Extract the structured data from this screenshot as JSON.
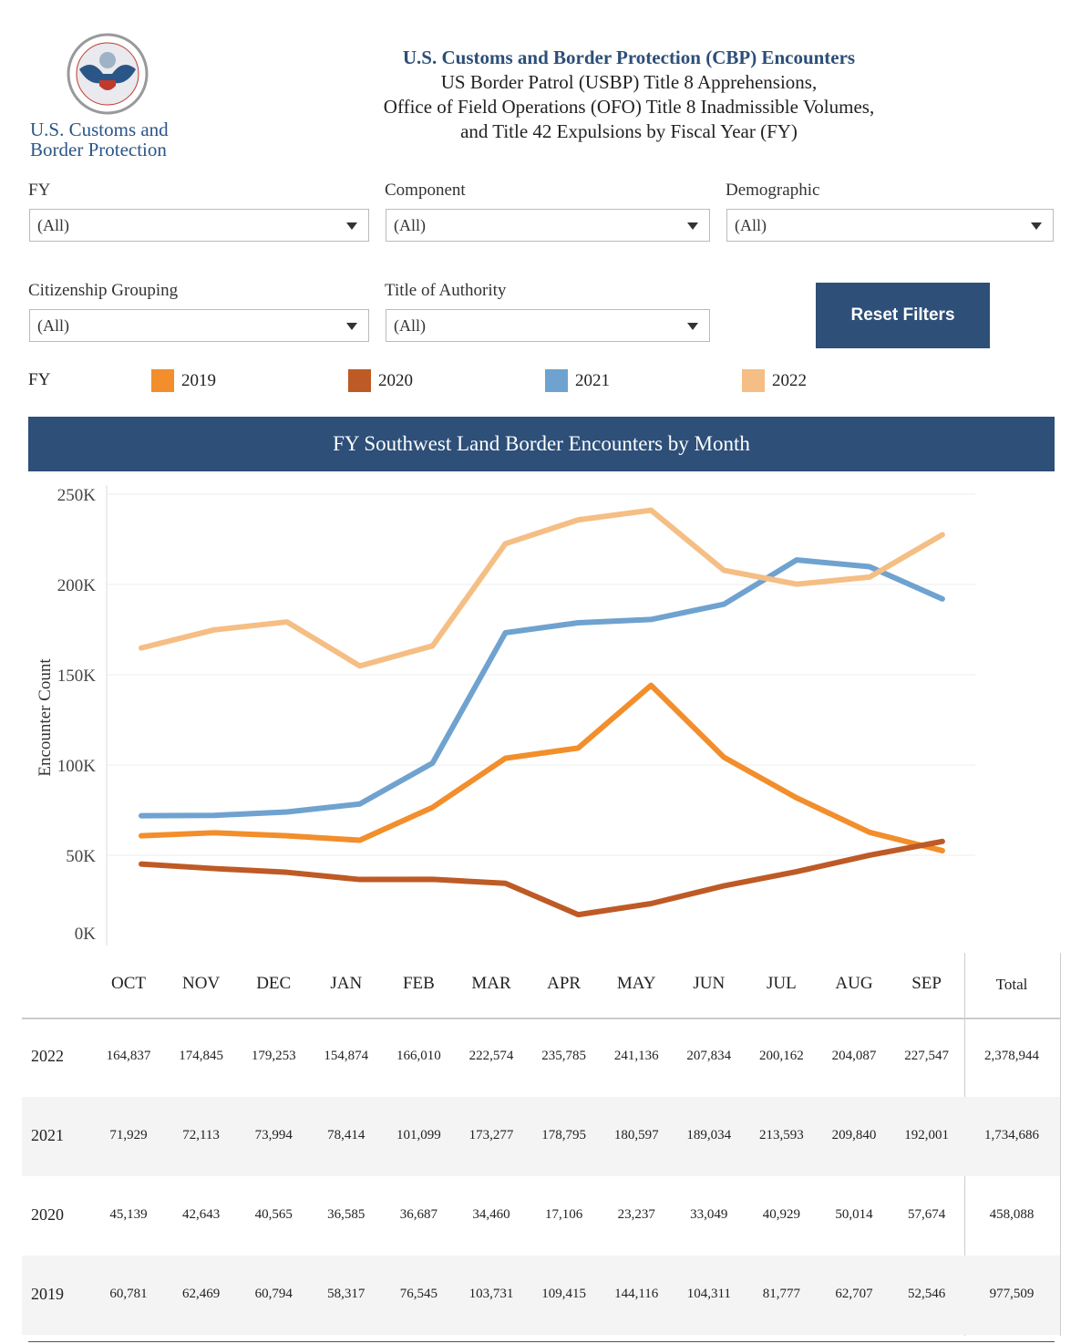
{
  "logo": {
    "text_line1": "U.S. Customs and",
    "text_line2": "Border Protection",
    "seal_text": "U.S. CUSTOMS AND BORDER PROTECTION · DEPARTMENT OF HOMELAND SECURITY"
  },
  "header": {
    "title": "U.S. Customs and Border Protection (CBP) Encounters",
    "line2": "US Border Patrol (USBP) Title 8 Apprehensions,",
    "line3": "Office of Field Operations (OFO) Title 8 Inadmissible Volumes,",
    "line4": "and Title 42 Expulsions by Fiscal Year (FY)"
  },
  "filters": {
    "fy": {
      "label": "FY",
      "value": "(All)"
    },
    "component": {
      "label": "Component",
      "value": "(All)"
    },
    "demographic": {
      "label": "Demographic",
      "value": "(All)"
    },
    "citizenship": {
      "label": "Citizenship Grouping",
      "value": "(All)"
    },
    "authority": {
      "label": "Title of Authority",
      "value": "(All)"
    },
    "reset_label": "Reset Filters"
  },
  "legend": {
    "title": "FY",
    "items": [
      {
        "label": "2019",
        "color": "#F28E2B"
      },
      {
        "label": "2020",
        "color": "#BE5A25"
      },
      {
        "label": "2021",
        "color": "#6FA2CF"
      },
      {
        "label": "2022",
        "color": "#F5BE84"
      }
    ]
  },
  "banner": "FY Southwest Land Border Encounters by Month",
  "chart_data": {
    "type": "line",
    "title": "FY Southwest Land Border Encounters by Month",
    "ylabel": "Encounter Count",
    "xlabel": "",
    "categories": [
      "OCT",
      "NOV",
      "DEC",
      "JAN",
      "FEB",
      "MAR",
      "APR",
      "MAY",
      "JUN",
      "JUL",
      "AUG",
      "SEP"
    ],
    "ylim": [
      0,
      250000
    ],
    "yticks": [
      {
        "v": 0,
        "label": "0K"
      },
      {
        "v": 50000,
        "label": "50K"
      },
      {
        "v": 100000,
        "label": "100K"
      },
      {
        "v": 150000,
        "label": "150K"
      },
      {
        "v": 200000,
        "label": "200K"
      },
      {
        "v": 250000,
        "label": "250K"
      }
    ],
    "grid": true,
    "legend": "top",
    "series": [
      {
        "name": "2019",
        "color": "#F28E2B",
        "values": [
          60781,
          62469,
          60794,
          58317,
          76545,
          103731,
          109415,
          144116,
          104311,
          81777,
          62707,
          52546
        ]
      },
      {
        "name": "2020",
        "color": "#BE5A25",
        "values": [
          45139,
          42643,
          40565,
          36585,
          36687,
          34460,
          17106,
          23237,
          33049,
          40929,
          50014,
          57674
        ]
      },
      {
        "name": "2021",
        "color": "#6FA2CF",
        "values": [
          71929,
          72113,
          73994,
          78414,
          101099,
          173277,
          178795,
          180597,
          189034,
          213593,
          209840,
          192001
        ]
      },
      {
        "name": "2022",
        "color": "#F5BE84",
        "values": [
          164837,
          174845,
          179253,
          154874,
          166010,
          222574,
          235785,
          241136,
          207834,
          200162,
          204087,
          227547
        ]
      }
    ]
  },
  "table": {
    "headers": [
      "OCT",
      "NOV",
      "DEC",
      "JAN",
      "FEB",
      "MAR",
      "APR",
      "MAY",
      "JUN",
      "JUL",
      "AUG",
      "SEP",
      "Total"
    ],
    "rows": [
      {
        "year": "2022",
        "cells": [
          "164,837",
          "174,845",
          "179,253",
          "154,874",
          "166,010",
          "222,574",
          "235,785",
          "241,136",
          "207,834",
          "200,162",
          "204,087",
          "227,547",
          "2,378,944"
        ]
      },
      {
        "year": "2021",
        "cells": [
          "71,929",
          "72,113",
          "73,994",
          "78,414",
          "101,099",
          "173,277",
          "178,795",
          "180,597",
          "189,034",
          "213,593",
          "209,840",
          "192,001",
          "1,734,686"
        ]
      },
      {
        "year": "2020",
        "cells": [
          "45,139",
          "42,643",
          "40,565",
          "36,585",
          "36,687",
          "34,460",
          "17,106",
          "23,237",
          "33,049",
          "40,929",
          "50,014",
          "57,674",
          "458,088"
        ]
      },
      {
        "year": "2019",
        "cells": [
          "60,781",
          "62,469",
          "60,794",
          "58,317",
          "76,545",
          "103,731",
          "109,415",
          "144,116",
          "104,311",
          "81,777",
          "62,707",
          "52,546",
          "977,509"
        ]
      }
    ]
  }
}
